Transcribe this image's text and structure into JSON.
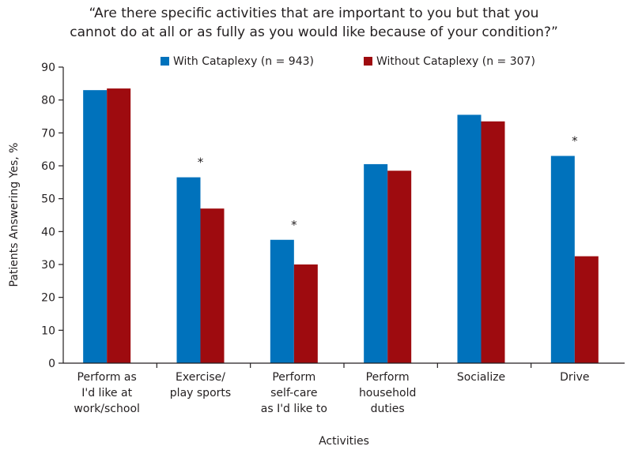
{
  "chart_data": {
    "type": "bar",
    "title_lines": [
      "“Are there specific activities that are important to you but that you",
      "cannot do at all or as fully as you would like because of your condition?”"
    ],
    "xlabel": "Activities",
    "ylabel": "Patients Answering Yes, %",
    "ylim": [
      0,
      90
    ],
    "yticks": [
      0,
      10,
      20,
      30,
      40,
      50,
      60,
      70,
      80,
      90
    ],
    "grid": false,
    "legend_position": "top",
    "categories": [
      [
        "Perform as",
        "I'd like at",
        "work/school"
      ],
      [
        "Exercise/",
        "play sports"
      ],
      [
        "Perform",
        "self-care",
        "as I'd like to"
      ],
      [
        "Perform",
        "household",
        "duties"
      ],
      [
        "Socialize"
      ],
      [
        "Drive"
      ]
    ],
    "series": [
      {
        "name": "With Cataplexy (n = 943)",
        "color": "#0072bc",
        "values": [
          83,
          56.5,
          37.5,
          60.5,
          75.5,
          63
        ]
      },
      {
        "name": "Without Cataplexy (n = 307)",
        "color": "#9e0b0f",
        "values": [
          83.5,
          47,
          30,
          58.5,
          73.5,
          32.5
        ]
      }
    ],
    "significance_marker": "*",
    "significant": [
      false,
      true,
      true,
      false,
      false,
      true
    ]
  }
}
